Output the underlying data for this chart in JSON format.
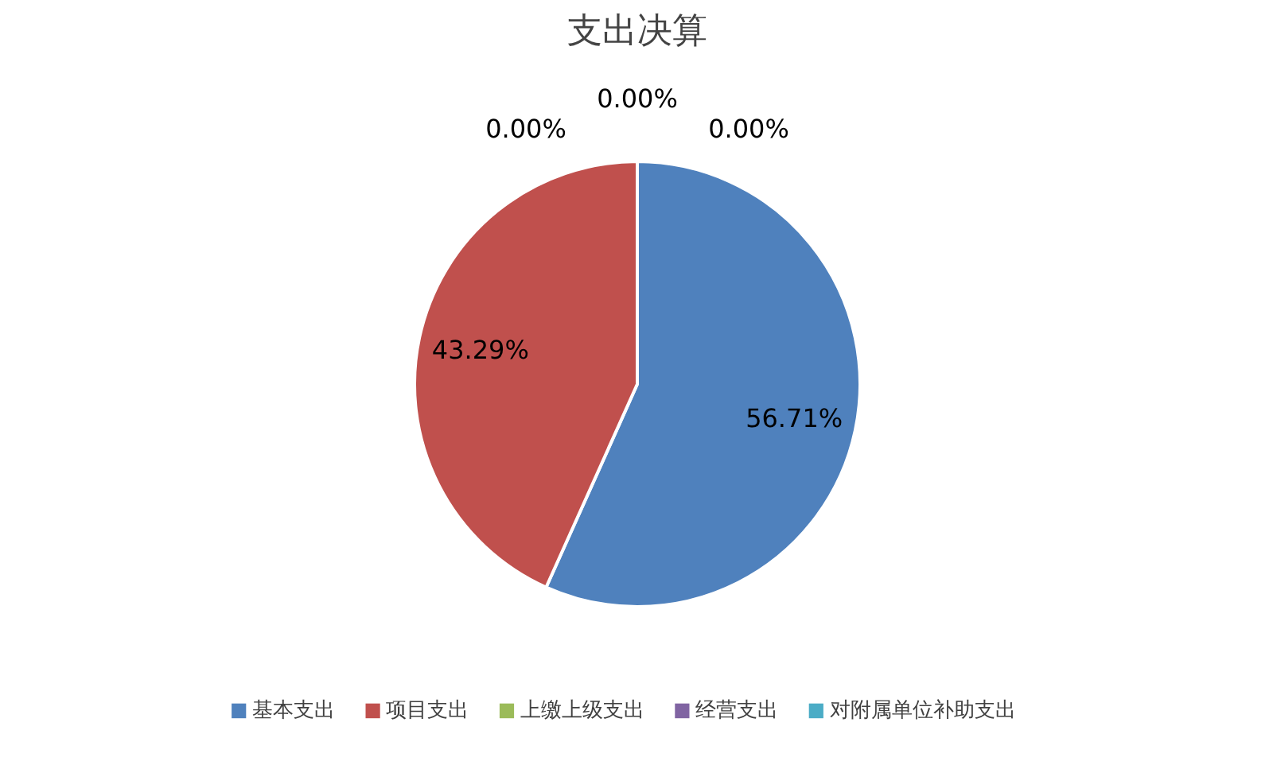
{
  "chart_data": {
    "type": "pie",
    "title": "支出决算",
    "categories": [
      "基本支出",
      "项目支出",
      "上缴上级支出",
      "经营支出",
      "对附属单位补助支出"
    ],
    "values": [
      56.71,
      43.29,
      0,
      0,
      0
    ],
    "colors": [
      "#4f81bd",
      "#c0504d",
      "#9bbb59",
      "#8064a2",
      "#4bacc6"
    ],
    "value_labels": [
      "56.71%",
      "43.29%",
      "0.00%",
      "0.00%",
      "0.00%"
    ],
    "legend": "bottom"
  }
}
